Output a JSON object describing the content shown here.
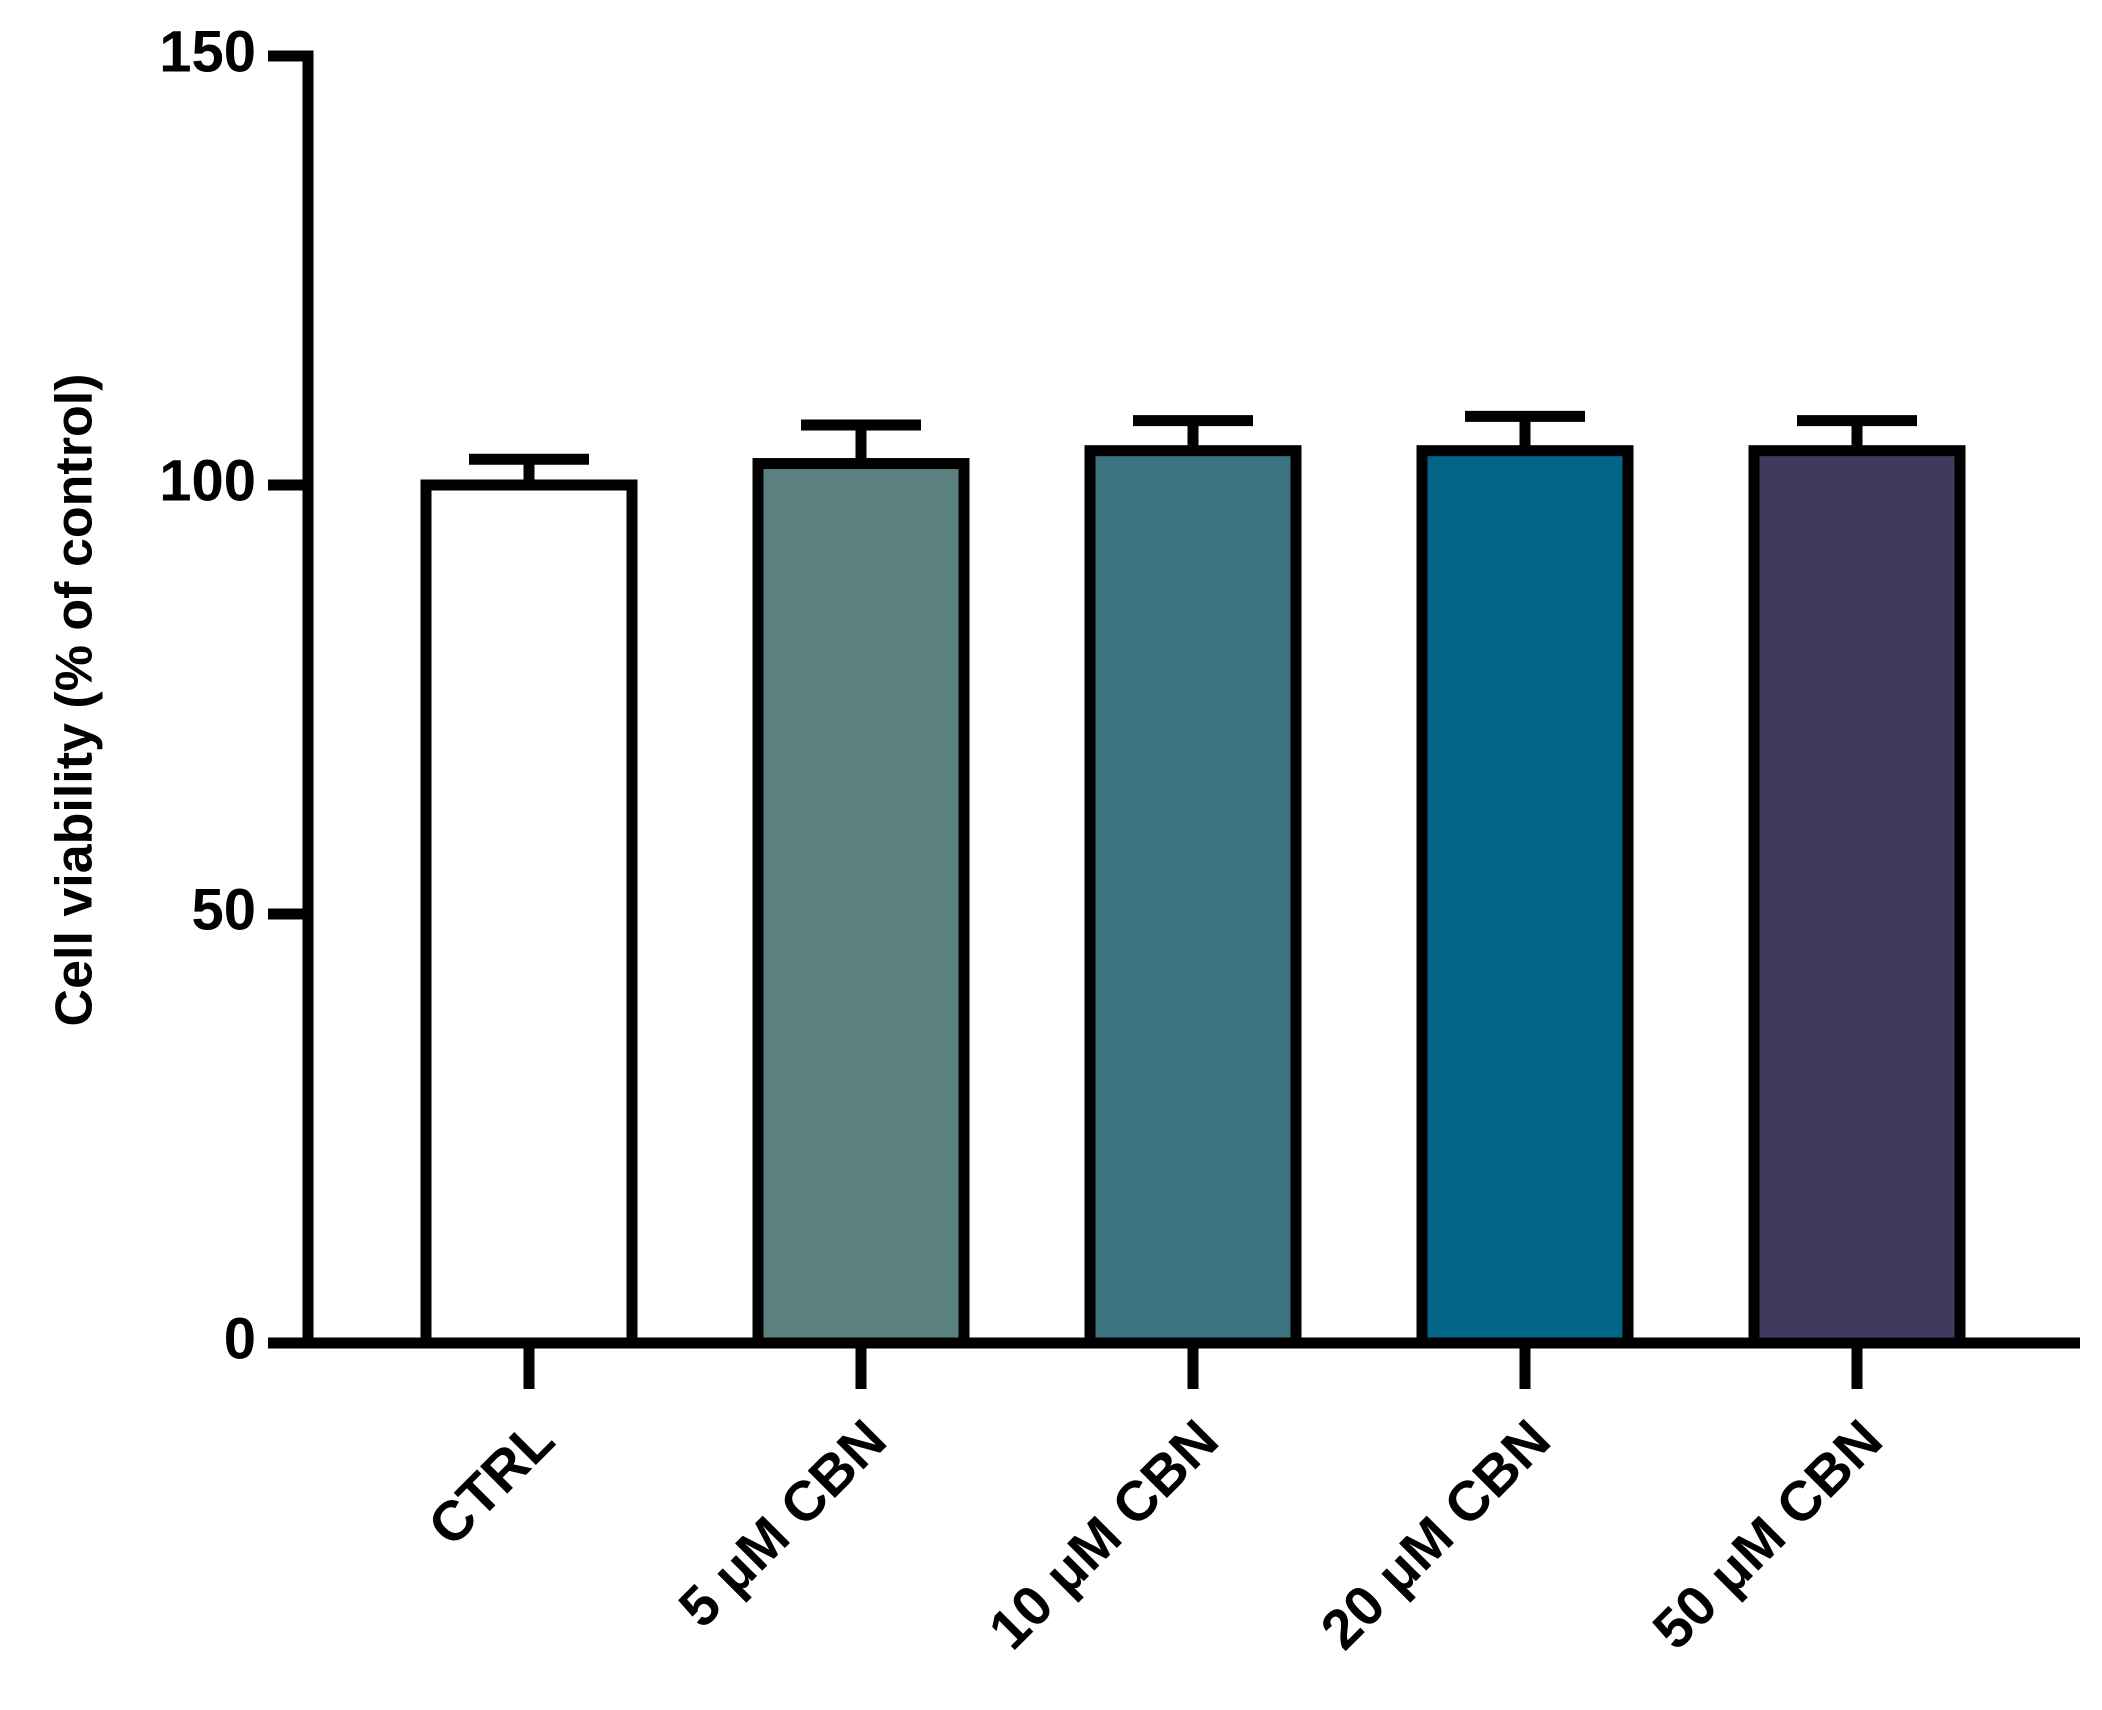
{
  "chart_data": {
    "type": "bar",
    "y_label": "Cell viability (% of control)",
    "categories": [
      "CTRL",
      "5 μM CBN",
      "10 μM CBN",
      "20 μM CBN",
      "50 μM CBN"
    ],
    "values": [
      100,
      102.5,
      104,
      104,
      104
    ],
    "errors": [
      3,
      4.5,
      3.5,
      4,
      3.5
    ],
    "colors": [
      "#ffffff",
      "#5b8080",
      "#3c7581",
      "#03648a",
      "#3f3b5e"
    ],
    "ylim": [
      0,
      150
    ],
    "yticks": [
      0,
      50,
      100,
      150
    ]
  }
}
